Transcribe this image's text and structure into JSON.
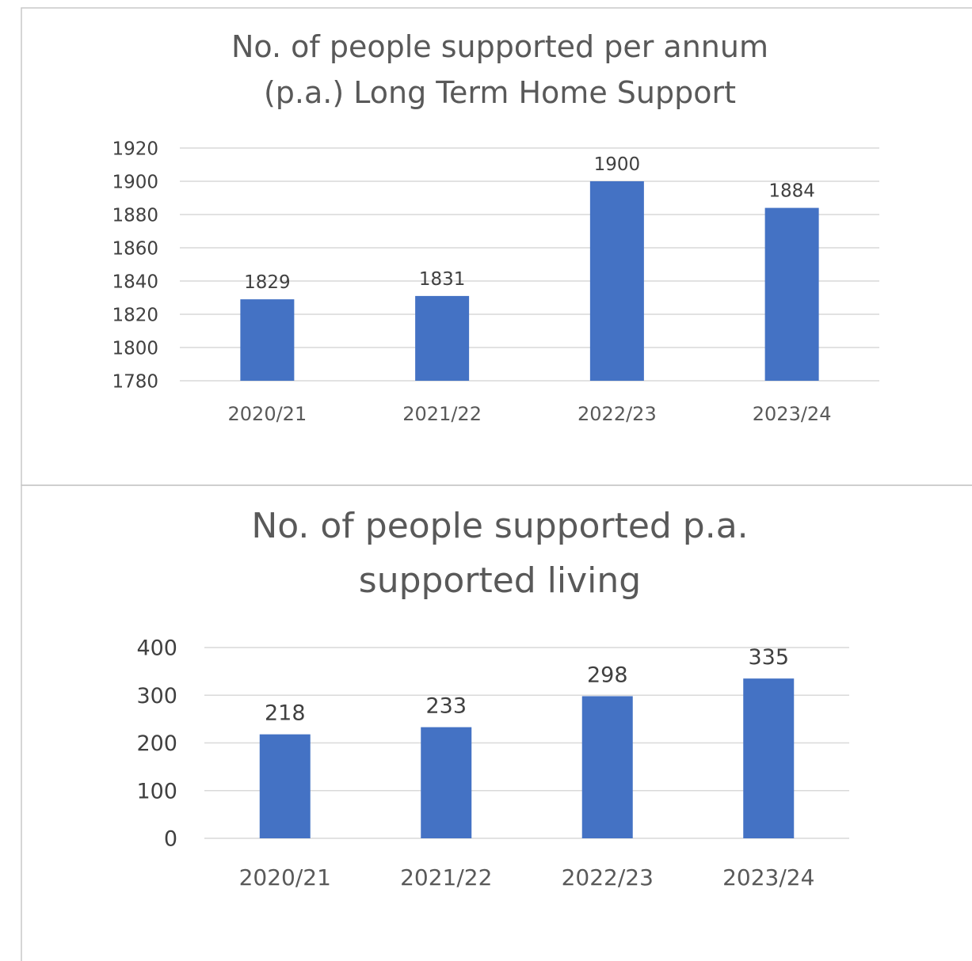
{
  "chart_data": [
    {
      "type": "bar",
      "title_lines": [
        "No. of people supported per annum",
        "(p.a.) Long Term Home Support"
      ],
      "categories": [
        "2020/21",
        "2021/22",
        "2022/23",
        "2023/24"
      ],
      "values": [
        1829,
        1831,
        1900,
        1884
      ],
      "data_labels": [
        "1829",
        "1831",
        "1900",
        "1884"
      ],
      "yticks": [
        1780,
        1800,
        1820,
        1840,
        1860,
        1880,
        1900,
        1920
      ],
      "ylim": [
        1780,
        1920
      ],
      "xlabel": "",
      "ylabel": "",
      "grid": true,
      "legend": "none",
      "bar_color": "#4472C4"
    },
    {
      "type": "bar",
      "title_lines": [
        "No. of people supported p.a.",
        "supported living"
      ],
      "categories": [
        "2020/21",
        "2021/22",
        "2022/23",
        "2023/24"
      ],
      "values": [
        218,
        233,
        298,
        335
      ],
      "data_labels": [
        "218",
        "233",
        "298",
        "335"
      ],
      "yticks": [
        0,
        100,
        200,
        300,
        400
      ],
      "ylim": [
        0,
        400
      ],
      "xlabel": "",
      "ylabel": "",
      "grid": true,
      "legend": "none",
      "bar_color": "#4472C4"
    }
  ]
}
